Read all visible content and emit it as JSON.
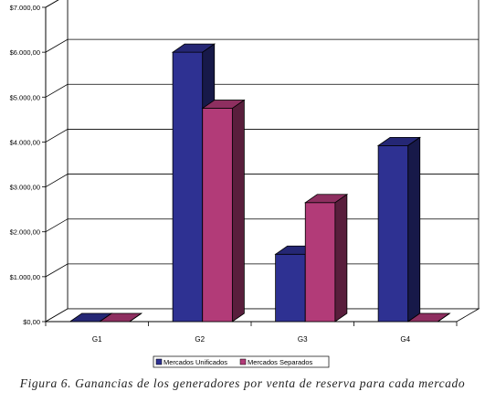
{
  "chart_data": {
    "type": "bar",
    "style": "3d-clustered-column",
    "categories": [
      "G1",
      "G2",
      "G3",
      "G4"
    ],
    "series": [
      {
        "name": "Mercados Unificados",
        "color": "#2E3192",
        "values": [
          0,
          6000,
          1500,
          3920
        ]
      },
      {
        "name": "Mercados  Separados",
        "color": "#B23B78",
        "values": [
          0,
          4750,
          2650,
          0
        ]
      }
    ],
    "y_ticks": [
      "$0,00",
      "$1.000,00",
      "$2.000,00",
      "$3.000,00",
      "$4.000,00",
      "$5.000,00",
      "$6.000,00",
      "$7.000,00"
    ],
    "ylim": [
      0,
      7000
    ],
    "grid": true,
    "legend_position": "bottom"
  },
  "caption": "Figura 6. Ganancias de los generadores por venta de reserva para cada mercado"
}
